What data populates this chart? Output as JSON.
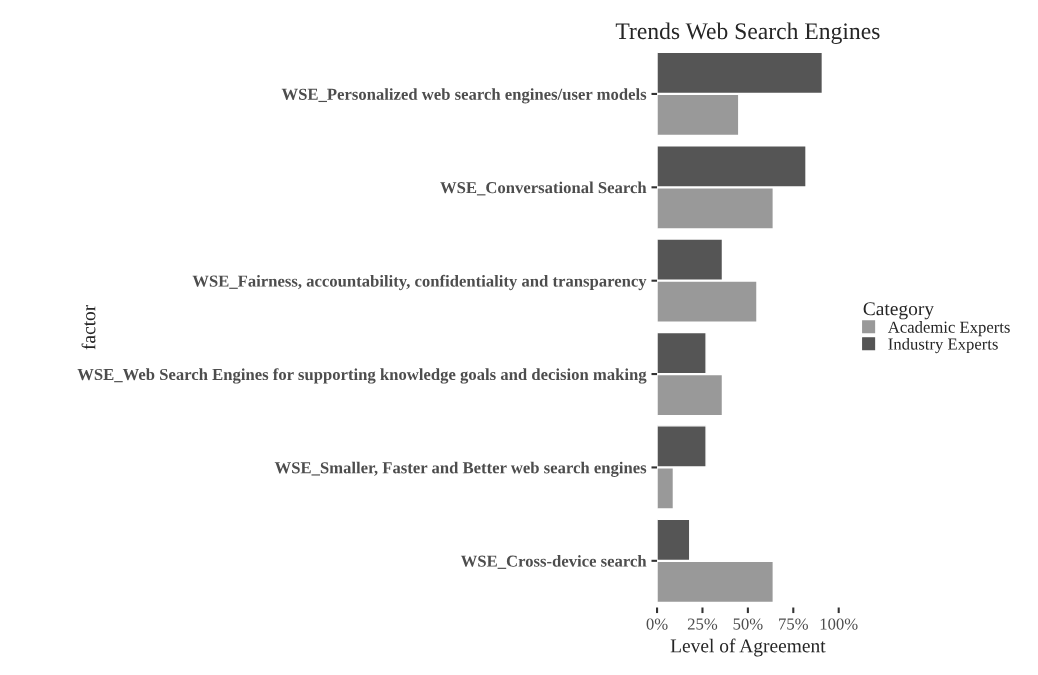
{
  "chart_data": {
    "type": "bar",
    "orientation": "horizontal",
    "title": "Trends Web Search Engines",
    "xlabel": "Level of Agreement",
    "ylabel": "factor",
    "legend_title": "Category",
    "legend": "right",
    "categories": [
      "WSE_Personalized web search engines/user models",
      "WSE_Conversational Search",
      "WSE_Fairness, accountability, confidentiality and transparency",
      "WSE_Web Search Engines for supporting knowledge goals and decision making",
      "WSE_Smaller, Faster and Better web search engines",
      "WSE_Cross-device search"
    ],
    "series": [
      {
        "name": "Academic Experts",
        "color": "#999999",
        "values": [
          45,
          64,
          55,
          36,
          9,
          64
        ]
      },
      {
        "name": "Industry Experts",
        "color": "#555555",
        "values": [
          91,
          82,
          36,
          27,
          27,
          18
        ]
      }
    ],
    "xlim": [
      0,
      100
    ],
    "xticks": [
      {
        "value": 0,
        "label": "0%"
      },
      {
        "value": 25,
        "label": "25%"
      },
      {
        "value": 50,
        "label": "50%"
      },
      {
        "value": 75,
        "label": "75%"
      },
      {
        "value": 100,
        "label": "100%"
      }
    ],
    "grid": false
  }
}
